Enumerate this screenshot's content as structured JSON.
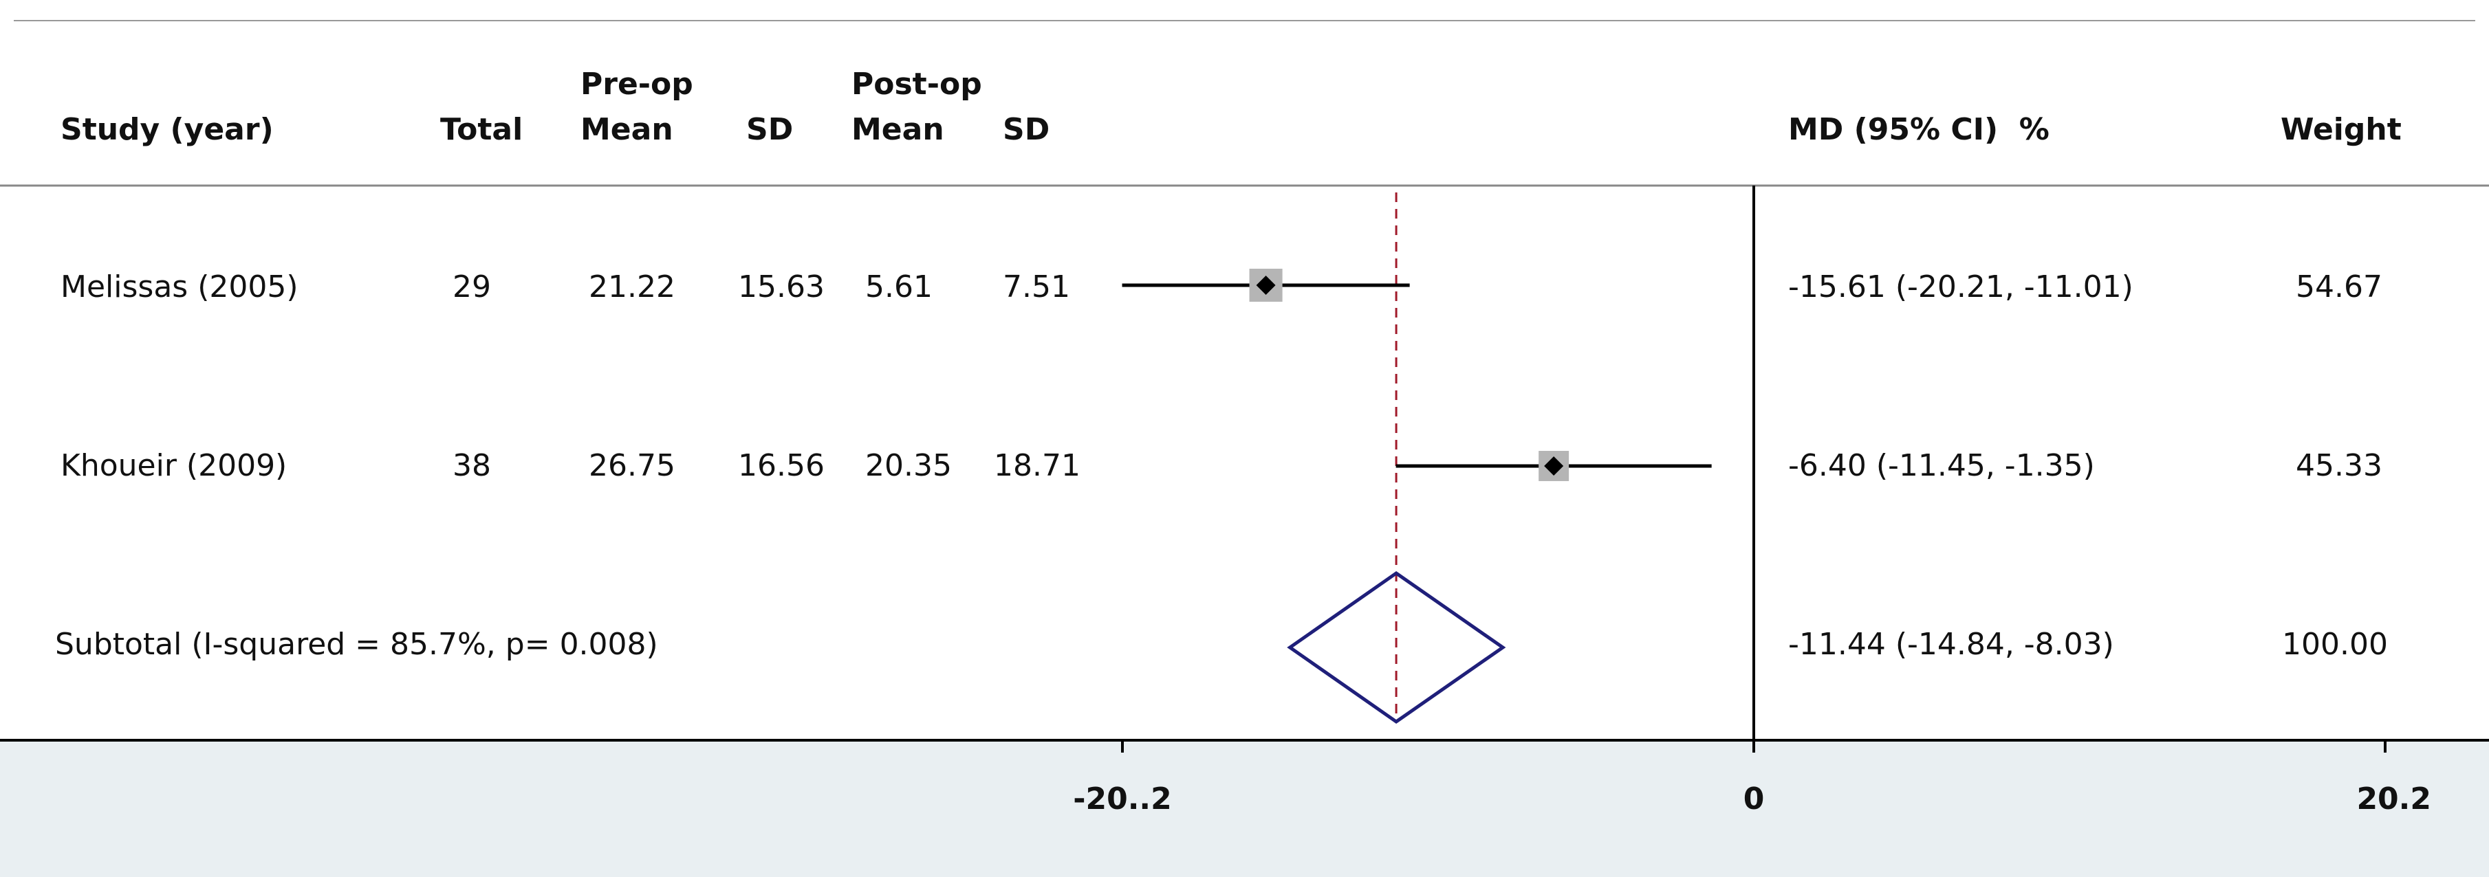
{
  "table": {
    "headers": {
      "study": "Study (year)",
      "total": "Total",
      "preop_group": "Pre-op",
      "preop_mean": "Mean",
      "preop_sd": "SD",
      "postop_group": "Post-op",
      "postop_mean": "Mean",
      "postop_sd": "SD",
      "md_ci": "MD (95% CI)  %",
      "weight": "Weight"
    },
    "rows": [
      {
        "study": "Melissas (2005)",
        "total": "29",
        "preop_mean": "21.22",
        "preop_sd": "15.63",
        "postop_mean": "5.61",
        "postop_sd": "7.51",
        "md_ci": "-15.61 (-20.21, -11.01)",
        "weight": "54.67"
      },
      {
        "study": "Khoueir (2009)",
        "total": "38",
        "preop_mean": "26.75",
        "preop_sd": "16.56",
        "postop_mean": "20.35",
        "postop_sd": "18.71",
        "md_ci": "-6.40 (-11.45, -1.35)",
        "weight": "45.33"
      }
    ],
    "subtotal": {
      "label": "Subtotal (I-squared = 85.7%, p= 0.008)",
      "md_ci": "-11.44 (-14.84, -8.03)",
      "weight": "100.00"
    }
  },
  "chart_data": {
    "type": "forest",
    "axis": {
      "range": [
        -20.2,
        20.2
      ],
      "ticks": [
        -20.2,
        0,
        20.2
      ],
      "tick_labels": [
        "-20..2",
        "0",
        "20.2"
      ]
    },
    "studies": [
      {
        "name": "Melissas (2005)",
        "estimate": -15.61,
        "ci": [
          -20.21,
          -11.01
        ],
        "weight": 54.67
      },
      {
        "name": "Khoueir (2009)",
        "estimate": -6.4,
        "ci": [
          -11.45,
          -1.35
        ],
        "weight": 45.33
      }
    ],
    "pooled": {
      "estimate": -11.44,
      "ci": [
        -14.84,
        -8.03
      ]
    },
    "colors": {
      "line": "#000000",
      "box": "#b5b5b5",
      "diamond": "#1f1f7a",
      "ref_line": "#a01a2a",
      "axis_band": "#e9eff2"
    }
  }
}
